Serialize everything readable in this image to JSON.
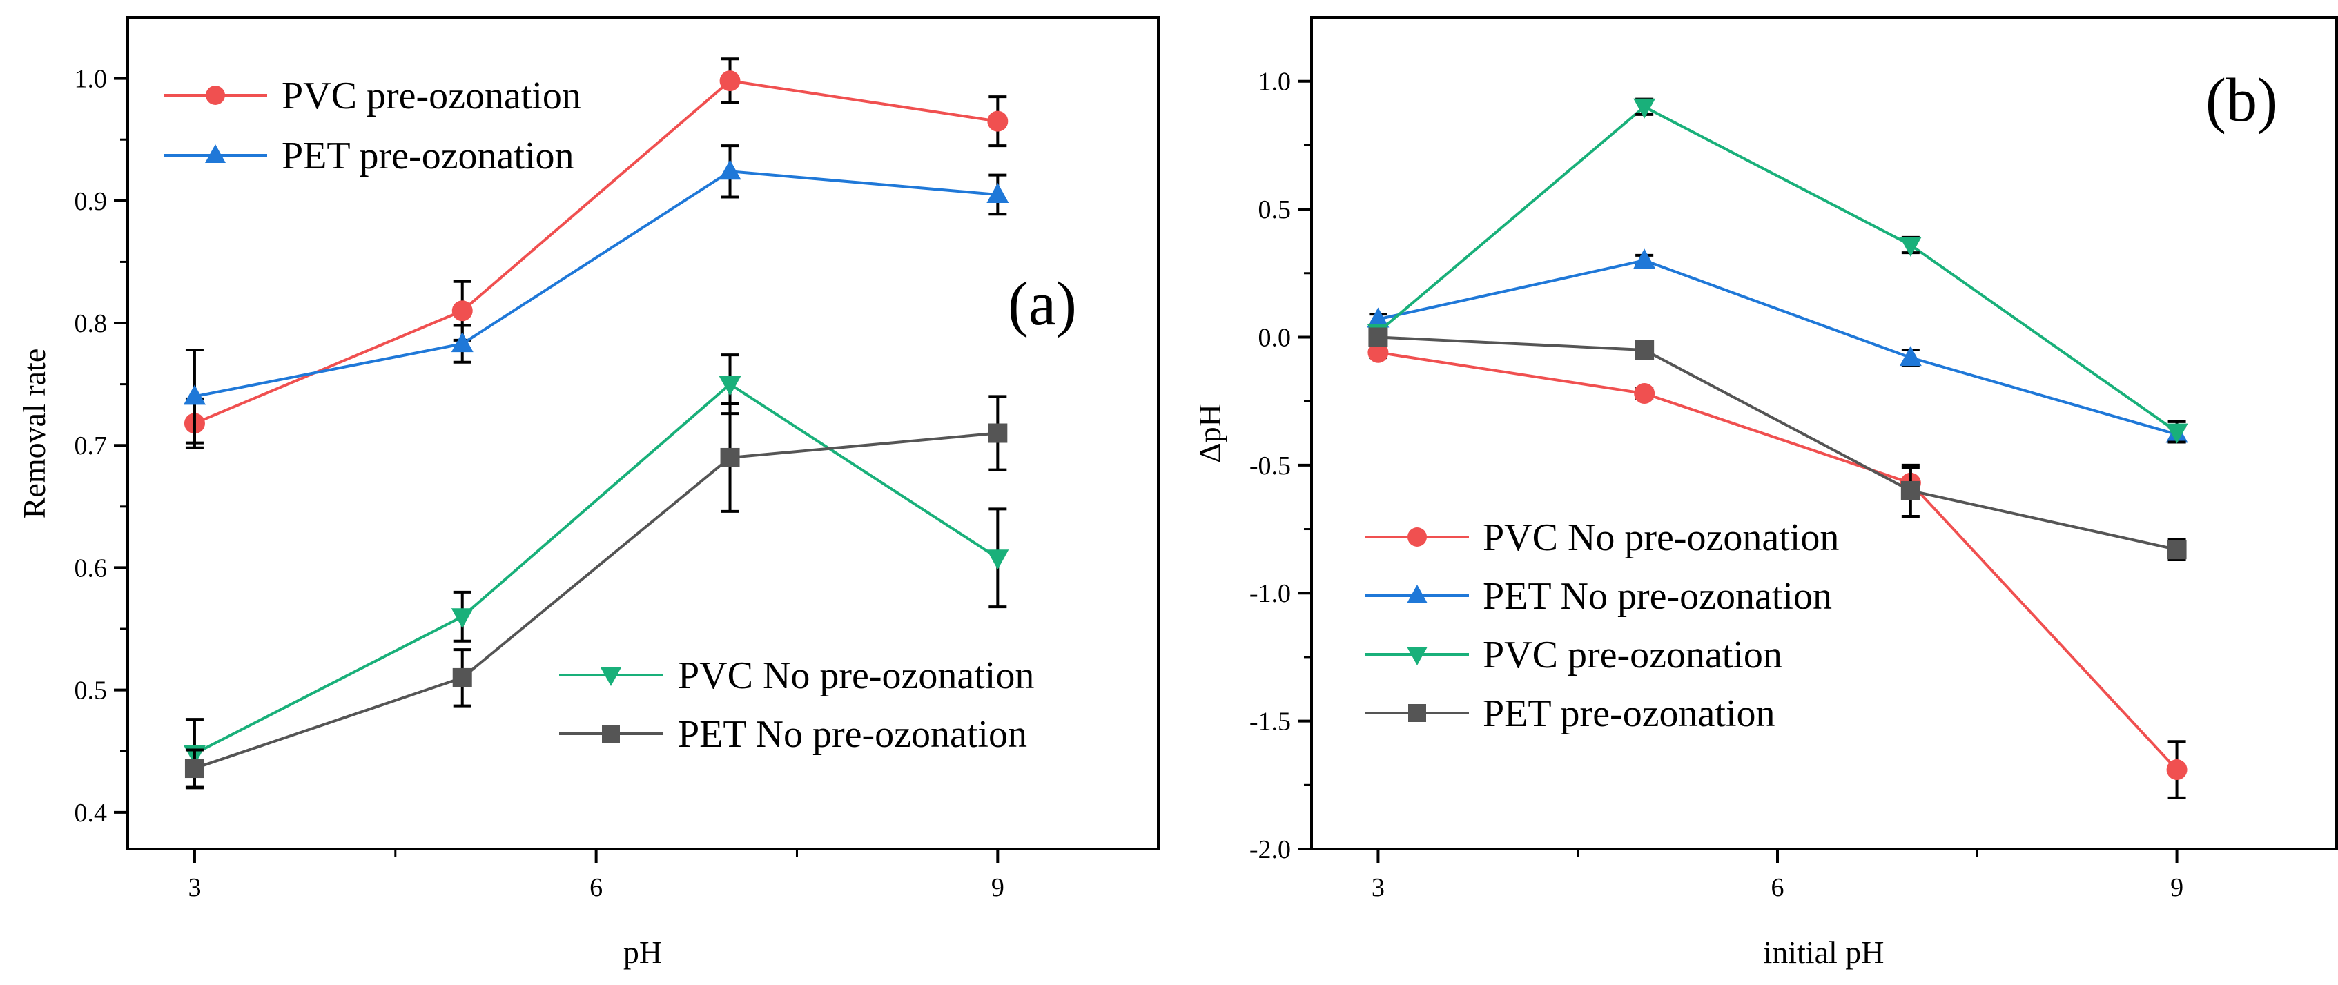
{
  "chart_data": [
    {
      "panel": "(a)",
      "type": "line",
      "xlabel": "pH",
      "ylabel": "Removal rate",
      "xlim": [
        2.5,
        10.2
      ],
      "ylim": [
        0.37,
        1.05
      ],
      "x_ticks": [
        3,
        6,
        9
      ],
      "x_tick_labels": [
        "3",
        "6",
        "9"
      ],
      "y_ticks": [
        0.4,
        0.5,
        0.6,
        0.7,
        0.8,
        0.9,
        1.0
      ],
      "y_tick_labels": [
        "0.4",
        "0.5",
        "0.6",
        "0.7",
        "0.8",
        "0.9",
        "1.0"
      ],
      "x": [
        3,
        5,
        7,
        9
      ],
      "series": [
        {
          "name": "PVC pre-ozonation",
          "color": "#f05050",
          "marker": "circle",
          "legend": "top-left",
          "values": [
            0.718,
            0.81,
            0.998,
            0.965
          ],
          "errors": [
            0.02,
            0.024,
            0.018,
            0.02
          ]
        },
        {
          "name": "PET pre-ozonation",
          "color": "#1f78d8",
          "marker": "triangle-up",
          "legend": "top-left",
          "values": [
            0.74,
            0.783,
            0.924,
            0.905
          ],
          "errors": [
            0.038,
            0.015,
            0.021,
            0.016
          ]
        },
        {
          "name": "PVC No pre-ozonation",
          "color": "#19b07a",
          "marker": "triangle-down",
          "legend": "bottom-right",
          "values": [
            0.448,
            0.56,
            0.75,
            0.608
          ],
          "errors": [
            0.028,
            0.02,
            0.024,
            0.04
          ]
        },
        {
          "name": "PET No pre-ozonation",
          "color": "#555555",
          "marker": "square",
          "legend": "bottom-right",
          "values": [
            0.436,
            0.51,
            0.69,
            0.71
          ],
          "errors": [
            0.015,
            0.023,
            0.044,
            0.03
          ]
        }
      ]
    },
    {
      "panel": "(b)",
      "type": "line",
      "xlabel": "initial pH",
      "ylabel": "ΔpH",
      "xlim": [
        2.5,
        10.2
      ],
      "ylim": [
        -2.0,
        1.25
      ],
      "x_ticks": [
        3,
        6,
        9
      ],
      "x_tick_labels": [
        "3",
        "6",
        "9"
      ],
      "y_ticks": [
        1.0,
        0.5,
        0.0,
        -0.5,
        -1.0,
        -1.5,
        -2.0
      ],
      "y_tick_labels": [
        "1.0",
        "0.5",
        "0.0",
        "-0.5",
        "-1.0",
        "-1.5",
        "-2.0"
      ],
      "x": [
        3,
        5,
        7,
        9
      ],
      "series": [
        {
          "name": "PVC No pre-ozonation",
          "color": "#f05050",
          "marker": "circle",
          "legend": "bottom-left",
          "values": [
            -0.06,
            -0.22,
            -0.57,
            -1.69
          ],
          "errors": [
            0.02,
            0.02,
            0.06,
            0.11
          ]
        },
        {
          "name": "PET No pre-ozonation",
          "color": "#1f78d8",
          "marker": "triangle-up",
          "legend": "bottom-left",
          "values": [
            0.07,
            0.3,
            -0.08,
            -0.38
          ],
          "errors": [
            0.02,
            0.02,
            0.03,
            0.03
          ]
        },
        {
          "name": "PVC pre-ozonation",
          "color": "#19b07a",
          "marker": "triangle-down",
          "legend": "bottom-left",
          "values": [
            0.02,
            0.9,
            0.36,
            -0.37
          ],
          "errors": [
            0.02,
            0.03,
            0.03,
            0.04
          ]
        },
        {
          "name": "PET pre-ozonation",
          "color": "#555555",
          "marker": "square",
          "legend": "bottom-left",
          "values": [
            0.0,
            -0.05,
            -0.6,
            -0.83
          ],
          "errors": [
            0.02,
            0.02,
            0.1,
            0.04
          ]
        }
      ]
    }
  ]
}
